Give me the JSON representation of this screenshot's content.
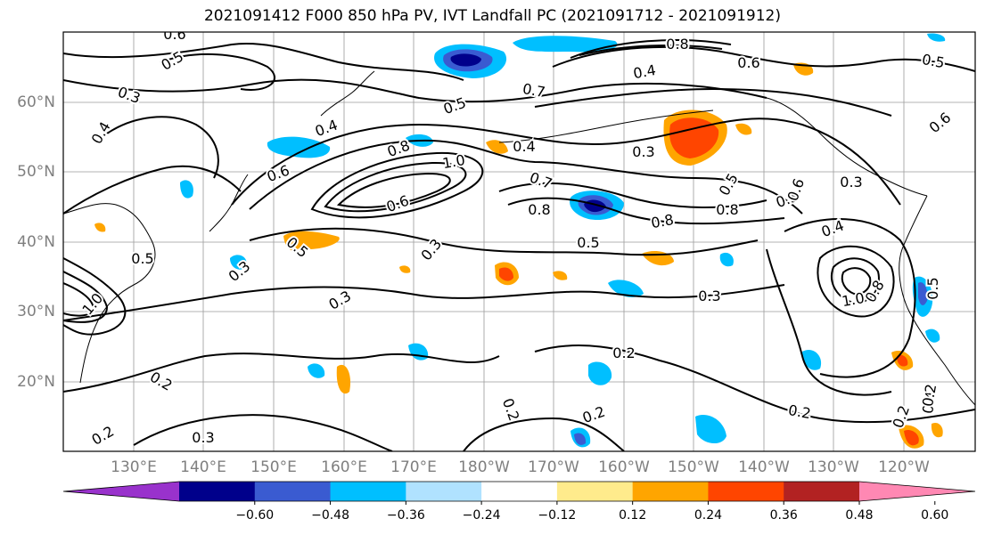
{
  "title": "2021091412 F000 850 hPa PV, IVT Landfall PC (2021091712 - 2021091912)",
  "map": {
    "lat_labels": [
      "60°N",
      "50°N",
      "40°N",
      "30°N",
      "20°N"
    ],
    "lon_labels": [
      "130°E",
      "140°E",
      "150°E",
      "160°E",
      "170°E",
      "180°W",
      "170°W",
      "160°W",
      "150°W",
      "140°W",
      "130°W",
      "120°W"
    ],
    "contour_labels": [
      {
        "text": "0.6"
      },
      {
        "text": "0.5"
      },
      {
        "text": "0.3"
      },
      {
        "text": "0.4"
      },
      {
        "text": "0.2"
      },
      {
        "text": "0.8"
      },
      {
        "text": "0.4"
      },
      {
        "text": "0.6"
      },
      {
        "text": "0.5"
      },
      {
        "text": "0.7"
      },
      {
        "text": "0.5"
      },
      {
        "text": "0.4"
      },
      {
        "text": "0.8"
      },
      {
        "text": "1.0"
      },
      {
        "text": "0.3"
      },
      {
        "text": "0.6"
      },
      {
        "text": "0.4"
      },
      {
        "text": "0.7"
      },
      {
        "text": "0.6"
      },
      {
        "text": "0.8"
      },
      {
        "text": "0.8"
      },
      {
        "text": "0.8"
      },
      {
        "text": "0.5"
      },
      {
        "text": "0.5"
      },
      {
        "text": "0.4"
      },
      {
        "text": "0.6"
      },
      {
        "text": "0.3"
      },
      {
        "text": "0.5"
      },
      {
        "text": "0.3"
      },
      {
        "text": "0.3"
      },
      {
        "text": "1.0"
      },
      {
        "text": "0.8"
      },
      {
        "text": "0.3"
      },
      {
        "text": "0.2"
      },
      {
        "text": "0.2"
      },
      {
        "text": "0.2"
      },
      {
        "text": "0.2"
      },
      {
        "text": "0.2"
      },
      {
        "text": "0.3"
      },
      {
        "text": "0.2"
      },
      {
        "text": "0.4"
      },
      {
        "text": "0.5"
      },
      {
        "text": "0.6"
      },
      {
        "text": "0.5"
      },
      {
        "text": "1.0"
      },
      {
        "text": "0.2"
      },
      {
        "text": "0.5"
      },
      {
        "text": "0.3"
      }
    ]
  },
  "colorbar": {
    "colors": [
      "#9932cc",
      "#00008b",
      "#3a5bd1",
      "#00bfff",
      "#b0e2ff",
      "#ffffff",
      "#ffeb8c",
      "#ffa500",
      "#ff4500",
      "#b22222",
      "#ff88b3"
    ],
    "tick_labels": [
      "−0.60",
      "−0.48",
      "−0.36",
      "−0.24",
      "−0.12",
      "0.12",
      "0.24",
      "0.36",
      "0.48",
      "0.60"
    ]
  }
}
